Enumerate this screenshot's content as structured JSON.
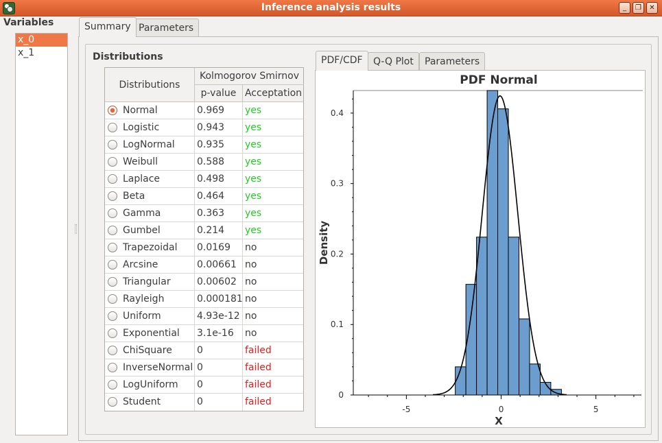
{
  "window": {
    "title": "Inference analysis results",
    "buttons": [
      "_",
      "❐",
      "✕"
    ]
  },
  "variables": {
    "title": "Variables",
    "items": [
      "x_0",
      "x_1"
    ],
    "selected": "x_0"
  },
  "outer_tabs": [
    "Summary",
    "Parameters"
  ],
  "summary": {
    "heading": "Distributions",
    "table": {
      "col_distributions": "Distributions",
      "group_header": "Kolmogorov Smirnov",
      "col_pvalue": "p-value",
      "col_acceptation": "Acceptation",
      "rows": [
        {
          "name": "Normal",
          "pvalue": "0.969",
          "acceptation": "yes",
          "checked": true
        },
        {
          "name": "Logistic",
          "pvalue": "0.943",
          "acceptation": "yes"
        },
        {
          "name": "LogNormal",
          "pvalue": "0.935",
          "acceptation": "yes"
        },
        {
          "name": "Weibull",
          "pvalue": "0.588",
          "acceptation": "yes"
        },
        {
          "name": "Laplace",
          "pvalue": "0.498",
          "acceptation": "yes"
        },
        {
          "name": "Beta",
          "pvalue": "0.464",
          "acceptation": "yes"
        },
        {
          "name": "Gamma",
          "pvalue": "0.363",
          "acceptation": "yes"
        },
        {
          "name": "Gumbel",
          "pvalue": "0.214",
          "acceptation": "yes"
        },
        {
          "name": "Trapezoidal",
          "pvalue": "0.0169",
          "acceptation": "no"
        },
        {
          "name": "Arcsine",
          "pvalue": "0.00661",
          "acceptation": "no"
        },
        {
          "name": "Triangular",
          "pvalue": "0.00602",
          "acceptation": "no"
        },
        {
          "name": "Rayleigh",
          "pvalue": "0.000181",
          "acceptation": "no"
        },
        {
          "name": "Uniform",
          "pvalue": "4.93e-12",
          "acceptation": "no"
        },
        {
          "name": "Exponential",
          "pvalue": "3.1e-16",
          "acceptation": "no"
        },
        {
          "name": "ChiSquare",
          "pvalue": "0",
          "acceptation": "failed"
        },
        {
          "name": "InverseNormal",
          "pvalue": "0",
          "acceptation": "failed"
        },
        {
          "name": "LogUniform",
          "pvalue": "0",
          "acceptation": "failed"
        },
        {
          "name": "Student",
          "pvalue": "0",
          "acceptation": "failed"
        }
      ]
    }
  },
  "plot_tabs": [
    "PDF/CDF",
    "Q-Q Plot",
    "Parameters"
  ],
  "colors": {
    "accent": "#f07746",
    "yes": "#22cc22",
    "no": "#3c3c3c",
    "failed": "#e81c1c",
    "bar_fill": "#6b9ecf"
  },
  "chart_data": {
    "type": "bar",
    "title": "PDF Normal",
    "xlabel": "X",
    "ylabel": "Density",
    "xlim": [
      -7.8,
      7.4
    ],
    "ylim": [
      0,
      0.432
    ],
    "xticks": [
      -5,
      0,
      5
    ],
    "yticks": [
      0,
      0.1,
      0.2,
      0.3,
      0.4
    ],
    "grid": false,
    "histogram": {
      "bin_edges": [
        -2.42,
        -1.86,
        -1.3,
        -0.74,
        -0.18,
        0.38,
        0.94,
        1.5,
        2.06,
        2.62,
        3.18
      ],
      "density": [
        0.04,
        0.157,
        0.224,
        0.47,
        0.406,
        0.224,
        0.108,
        0.044,
        0.018,
        0.008
      ]
    },
    "pdf_curve": {
      "name": "Normal",
      "mu": -0.06,
      "sigma": 0.94,
      "x_range": [
        -3.6,
        3.45
      ]
    }
  }
}
